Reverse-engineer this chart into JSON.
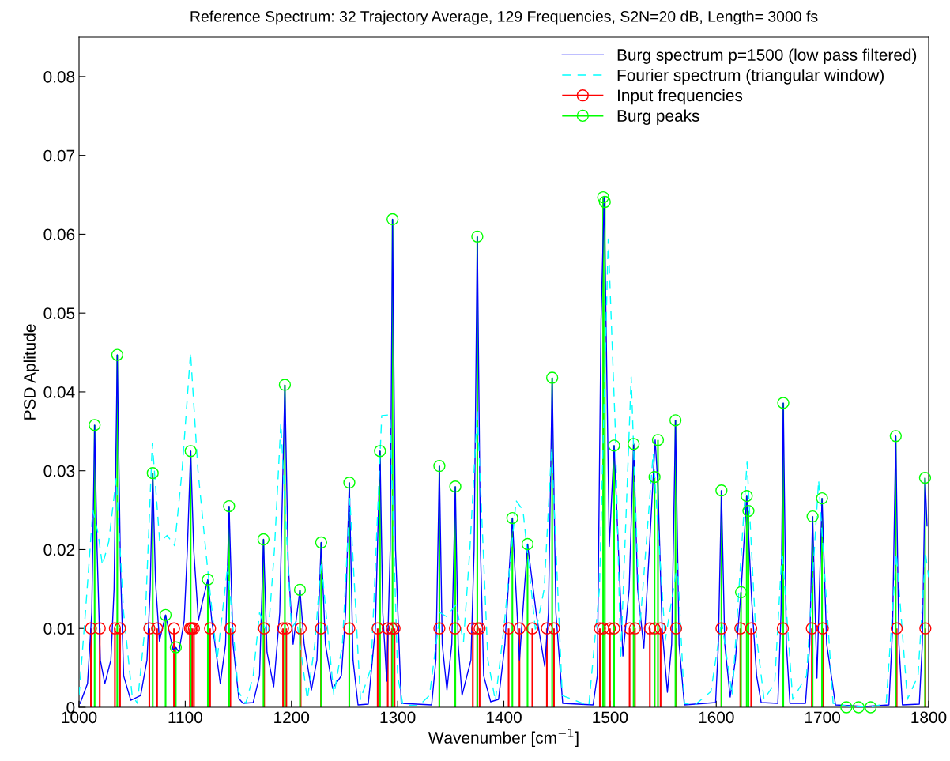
{
  "chart_data": {
    "type": "line",
    "title": "Reference Spectrum: 32 Trajectory Average, 129 Frequencies, S2N=20 dB, Length= 3000 fs",
    "xlabel": "Wavenumber [cm$^{−1}$]",
    "ylabel": "PSD Aplitude",
    "xlim": [
      1000,
      1800
    ],
    "xticks": [
      1000,
      1100,
      1200,
      1300,
      1400,
      1500,
      1600,
      1700,
      1800
    ],
    "ylim": [
      0,
      0.085
    ],
    "yticks": [
      0,
      0.01,
      0.02,
      0.03,
      0.04,
      0.05,
      0.06,
      0.07,
      0.08
    ],
    "grid": false,
    "legend": "top right",
    "series": [
      {
        "name": "Burg spectrum p=1500 (low pass filtered)",
        "color": "#0000ff",
        "line_style": "solid",
        "marker": "none",
        "x": [
          1001,
          1008,
          1012,
          1014.7,
          1017,
          1020,
          1024.3,
          1030,
          1033,
          1036.0,
          1039,
          1042,
          1048.7,
          1058,
          1064,
          1067,
          1069.4,
          1072,
          1075.7,
          1081.5,
          1088.5,
          1091.1,
          1094,
          1099,
          1102,
          1105.1,
          1108,
          1112.4,
          1116.4,
          1121.3,
          1125,
          1133,
          1138,
          1141.3,
          1145,
          1150.5,
          1154.5,
          1164,
          1170,
          1173.7,
          1177,
          1183.3,
          1189,
          1193.8,
          1197,
          1201.6,
          1208.0,
          1212,
          1218.8,
          1224,
          1228.0,
          1232,
          1238.8,
          1247,
          1251,
          1254.5,
          1258,
          1262.7,
          1272.3,
          1279,
          1283.4,
          1286,
          1289.7,
          1293,
          1295.2,
          1298,
          1303.4,
          1332,
          1336,
          1339.3,
          1342,
          1346.4,
          1351,
          1354.3,
          1357,
          1360.6,
          1369,
          1372,
          1375.0,
          1378,
          1381,
          1387.6,
          1395,
          1401,
          1408.0,
          1414.7,
          1422.3,
          1430.6,
          1438.5,
          1442,
          1445.5,
          1449,
          1455.4,
          1484,
          1488,
          1491.5,
          1494.5,
          1499.3,
          1503.8,
          1512.1,
          1518,
          1522.2,
          1526,
          1531.8,
          1537,
          1542.5,
          1545.1,
          1549,
          1554.0,
          1558,
          1561.6,
          1565,
          1570,
          1599.4,
          1602,
          1604.9,
          1608,
          1613.1,
          1618,
          1623.3,
          1628.7,
          1633.4,
          1638,
          1642.3,
          1658,
          1661,
          1663.1,
          1666,
          1669.4,
          1684,
          1688,
          1690.7,
          1694.8,
          1699.6,
          1704,
          1712.3,
          1740,
          1762.6,
          1766,
          1769.0,
          1772,
          1775.3,
          1791.2,
          1794,
          1796.6,
          1798.5
        ],
        "values": [
          0.0005,
          0.003,
          0.012,
          0.0358,
          0.02,
          0.006,
          0.003,
          0.006,
          0.015,
          0.0447,
          0.018,
          0.004,
          0.0009,
          0.0015,
          0.006,
          0.015,
          0.0297,
          0.016,
          0.0084,
          0.0117,
          0.0073,
          0.0076,
          0.007,
          0.011,
          0.02,
          0.0325,
          0.02,
          0.011,
          0.0135,
          0.0162,
          0.011,
          0.003,
          0.008,
          0.0255,
          0.008,
          0.0011,
          0.0005,
          0.0006,
          0.004,
          0.0213,
          0.007,
          0.0026,
          0.012,
          0.0409,
          0.018,
          0.008,
          0.0149,
          0.008,
          0.0022,
          0.006,
          0.0209,
          0.008,
          0.0024,
          0.004,
          0.012,
          0.0285,
          0.006,
          0.0003,
          0.0004,
          0.01,
          0.0325,
          0.012,
          0.0033,
          0.02,
          0.0619,
          0.02,
          0.0005,
          0.0003,
          0.006,
          0.0306,
          0.008,
          0.0022,
          0.008,
          0.028,
          0.008,
          0.0015,
          0.006,
          0.02,
          0.0597,
          0.02,
          0.004,
          0.0007,
          0.001,
          0.008,
          0.024,
          0.006,
          0.0207,
          0.0118,
          0.0052,
          0.012,
          0.0418,
          0.012,
          0.0005,
          0.0003,
          0.004,
          0.049,
          0.0647,
          0.0204,
          0.0332,
          0.0065,
          0.015,
          0.0334,
          0.015,
          0.0075,
          0.02,
          0.0339,
          0.028,
          0.01,
          0.0019,
          0.008,
          0.0364,
          0.008,
          0.0003,
          0.0006,
          0.008,
          0.0275,
          0.008,
          0.0013,
          0.006,
          0.0146,
          0.0268,
          0.0135,
          0.004,
          0.0006,
          0.0005,
          0.012,
          0.0386,
          0.008,
          0.0005,
          0.0005,
          0.008,
          0.0242,
          0.0037,
          0.0265,
          0.008,
          0.0003,
          0.0001,
          0.0003,
          0.01,
          0.0344,
          0.008,
          0.0003,
          0.0004,
          0.008,
          0.0291,
          0.023
        ]
      },
      {
        "name": "Fourier spectrum (triangular window)",
        "color": "#00ffff",
        "line_style": "dashed",
        "marker": "none",
        "x": [
          1000,
          1006,
          1013,
          1018,
          1022,
          1028,
          1035,
          1042,
          1050,
          1055,
          1062,
          1069,
          1076,
          1083,
          1090,
          1097,
          1105,
          1112,
          1120,
          1130,
          1140,
          1150,
          1157,
          1164,
          1170,
          1178,
          1184,
          1190,
          1200,
          1205,
          1215,
          1222,
          1228,
          1240,
          1248,
          1255,
          1265,
          1275,
          1285,
          1292.9,
          1300,
          1305,
          1320,
          1330,
          1340,
          1346,
          1355,
          1362,
          1368,
          1375,
          1385,
          1392,
          1400,
          1411.5,
          1418,
          1430,
          1438,
          1445,
          1455,
          1480,
          1490,
          1498.3,
          1505,
          1510,
          1519.9,
          1528,
          1540.6,
          1552,
          1563.5,
          1570,
          1580,
          1595,
          1605,
          1615,
          1629,
          1637,
          1645,
          1655,
          1662,
          1672,
          1685,
          1696.4,
          1710,
          1725,
          1745,
          1760,
          1769.6,
          1780,
          1790,
          1797,
          1800
        ],
        "values": [
          0.0015,
          0.012,
          0.025,
          0.022,
          0.018,
          0.021,
          0.029,
          0.012,
          0.0015,
          0.0005,
          0.01,
          0.0335,
          0.021,
          0.0218,
          0.0205,
          0.03,
          0.045,
          0.03,
          0.019,
          0.006,
          0.018,
          0.002,
          0.0005,
          0.004,
          0.012,
          0.009,
          0.02,
          0.036,
          0.01,
          0.011,
          0.001,
          0.008,
          0.0185,
          0.0015,
          0.008,
          0.0265,
          0.001,
          0.005,
          0.037,
          0.0371,
          0.004,
          0.0003,
          0.0002,
          0.0015,
          0.012,
          0.0115,
          0.013,
          0.0083,
          0.02,
          0.0375,
          0.006,
          0.0008,
          0.01,
          0.0262,
          0.025,
          0.0095,
          0.015,
          0.033,
          0.0015,
          0.0002,
          0.015,
          0.0594,
          0.035,
          0.006,
          0.0419,
          0.01,
          0.0322,
          0.0085,
          0.0182,
          0.0005,
          0.0003,
          0.002,
          0.011,
          0.0015,
          0.0311,
          0.01,
          0.001,
          0.003,
          0.02,
          0.001,
          0.004,
          0.0288,
          0.0005,
          0.0001,
          0.0,
          0.0005,
          0.0195,
          0.001,
          0.004,
          0.0195,
          0.0165
        ]
      },
      {
        "name": "Input frequencies",
        "type": "lollipop",
        "color": "#ff0000",
        "line_style": "solid",
        "marker": "circle",
        "x": [
          1011.2,
          1019.5,
          1033.8,
          1038.6,
          1066.2,
          1073.5,
          1089.4,
          1104.4,
          1105.5,
          1106.6,
          1108.2,
          1123.4,
          1142.5,
          1174.3,
          1192.1,
          1195.2,
          1208.7,
          1227.8,
          1254.5,
          1281.2,
          1290.7,
          1294.6,
          1297.1,
          1339.3,
          1354.0,
          1370.8,
          1375.0,
          1377.2,
          1404.5,
          1414.7,
          1426.8,
          1440.5,
          1447.2,
          1490.4,
          1493.5,
          1499.9,
          1503.8,
          1518.4,
          1523.4,
          1537.5,
          1541.9,
          1547.6,
          1562.2,
          1604.9,
          1622.7,
          1632.9,
          1662.7,
          1690.0,
          1700.3,
          1769.9,
          1796.9
        ],
        "values": [
          0.01,
          0.01,
          0.01,
          0.01,
          0.01,
          0.01,
          0.01,
          0.01,
          0.01,
          0.01,
          0.01,
          0.01,
          0.01,
          0.01,
          0.01,
          0.01,
          0.01,
          0.01,
          0.01,
          0.01,
          0.01,
          0.01,
          0.01,
          0.01,
          0.01,
          0.01,
          0.01,
          0.01,
          0.01,
          0.01,
          0.01,
          0.01,
          0.01,
          0.01,
          0.01,
          0.01,
          0.01,
          0.01,
          0.01,
          0.01,
          0.01,
          0.01,
          0.01,
          0.01,
          0.01,
          0.01,
          0.01,
          0.01,
          0.01,
          0.01,
          0.01
        ]
      },
      {
        "name": "Burg peaks",
        "type": "lollipop",
        "color": "#00ff00",
        "line_style": "solid",
        "marker": "circle",
        "x": [
          1014.7,
          1036.0,
          1069.4,
          1081.5,
          1091.1,
          1105.1,
          1121.3,
          1141.3,
          1173.7,
          1193.8,
          1208.0,
          1228.0,
          1254.5,
          1283.4,
          1295.2,
          1339.3,
          1354.3,
          1375.0,
          1408.0,
          1422.3,
          1445.5,
          1493.5,
          1495.1,
          1503.8,
          1522.2,
          1541.9,
          1545.1,
          1561.6,
          1604.9,
          1623.3,
          1628.7,
          1630.3,
          1663.1,
          1690.7,
          1699.6,
          1722.5,
          1734.0,
          1745.4,
          1769.0,
          1796.6
        ],
        "values": [
          0.0358,
          0.0447,
          0.0297,
          0.0117,
          0.0076,
          0.0325,
          0.0162,
          0.0255,
          0.0213,
          0.0409,
          0.0149,
          0.0209,
          0.0285,
          0.0325,
          0.0619,
          0.0306,
          0.028,
          0.0597,
          0.024,
          0.0207,
          0.0418,
          0.0647,
          0.0641,
          0.0332,
          0.0334,
          0.0292,
          0.0339,
          0.0364,
          0.0275,
          0.0146,
          0.0268,
          0.0249,
          0.0386,
          0.0242,
          0.0265,
          0.0,
          0.0,
          0.0,
          0.0344,
          0.0291
        ]
      }
    ]
  }
}
